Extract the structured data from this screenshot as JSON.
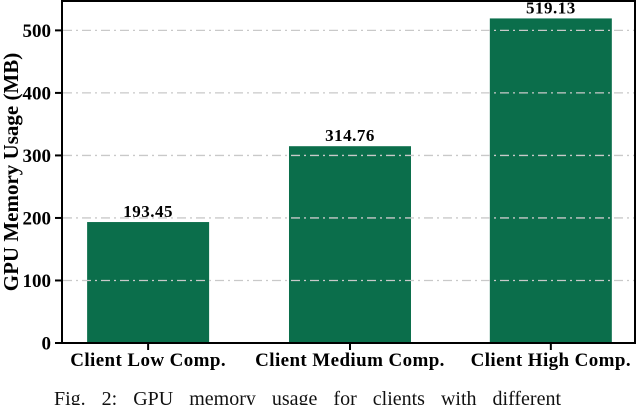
{
  "figure": {
    "caption": "Fig. 2: GPU memory usage for clients with different"
  },
  "chart_data": {
    "type": "bar",
    "categories": [
      "Client Low Comp.",
      "Client Medium Comp.",
      "Client High Comp."
    ],
    "values": [
      193.45,
      314.76,
      519.13
    ],
    "value_labels": [
      "193.45",
      "314.76",
      "519.13"
    ],
    "xlabel": "",
    "ylabel": "GPU Memory Usage (MB)",
    "yticks": [
      0,
      100,
      200,
      300,
      400,
      500
    ],
    "ytick_labels": [
      "0",
      "100",
      "200",
      "300",
      "400",
      "500"
    ],
    "ylim": [
      0,
      547
    ],
    "bar_color": "#0B6E4B",
    "axis_color": "#000000",
    "grid": {
      "axis": "y",
      "style": "dash-dot",
      "color": "#c9c9c9"
    }
  }
}
